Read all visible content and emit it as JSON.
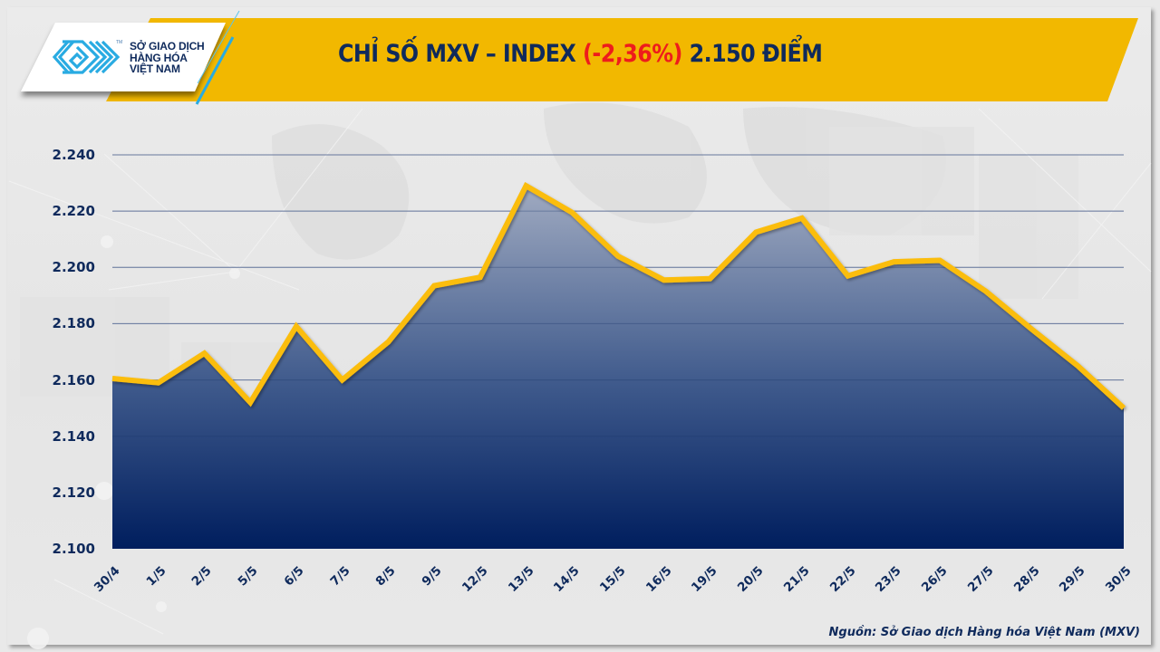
{
  "header": {
    "logo": {
      "icon": "mxv-logo-icon",
      "trademark": "TM",
      "lines": [
        "SỞ GIAO DỊCH",
        "HÀNG HÓA",
        "VIỆT NAM"
      ]
    },
    "title": {
      "prefix": "CHỈ SỐ MXV – INDEX ",
      "change": "(-2,36%)",
      "suffix": " 2.150 ĐIỂM"
    }
  },
  "colors": {
    "banner": "#f2b800",
    "title_text": "#0f2a5c",
    "negative": "#ee1c1c",
    "line": "#fbbd08",
    "area_top": "#a2acc2",
    "area_bottom": "#001e5e",
    "grid": "#8f9bb8",
    "logo_blue": "#29abe2"
  },
  "source": "Nguồn: Sở Giao dịch Hàng hóa Việt Nam (MXV)",
  "chart_data": {
    "type": "area",
    "title": "CHỈ SỐ MXV – INDEX (-2,36%) 2.150 ĐIỂM",
    "xlabel": "",
    "ylabel": "",
    "ylim": [
      2100,
      2240
    ],
    "yticks": [
      2100,
      2120,
      2140,
      2160,
      2180,
      2200,
      2220,
      2240
    ],
    "ytick_labels": [
      "2.100",
      "2.120",
      "2.140",
      "2.160",
      "2.180",
      "2.200",
      "2.220",
      "2.240"
    ],
    "grid": true,
    "legend": null,
    "categories": [
      "30/4",
      "1/5",
      "2/5",
      "5/5",
      "6/5",
      "7/5",
      "8/5",
      "9/5",
      "12/5",
      "13/5",
      "14/5",
      "15/5",
      "16/5",
      "19/5",
      "20/5",
      "21/5",
      "22/5",
      "23/5",
      "26/5",
      "27/5",
      "28/5",
      "29/5",
      "30/5"
    ],
    "series": [
      {
        "name": "MXV-Index",
        "values": [
          2160.5,
          2159,
          2169.5,
          2152,
          2179,
          2160,
          2173.5,
          2193.5,
          2196.5,
          2229,
          2219.5,
          2204,
          2195.5,
          2196,
          2212.5,
          2217.5,
          2197,
          2202,
          2202.5,
          2191.5,
          2178,
          2165,
          2150
        ]
      }
    ],
    "annotations": [
      "Nguồn: Sở Giao dịch Hàng hóa Việt Nam (MXV)"
    ]
  }
}
